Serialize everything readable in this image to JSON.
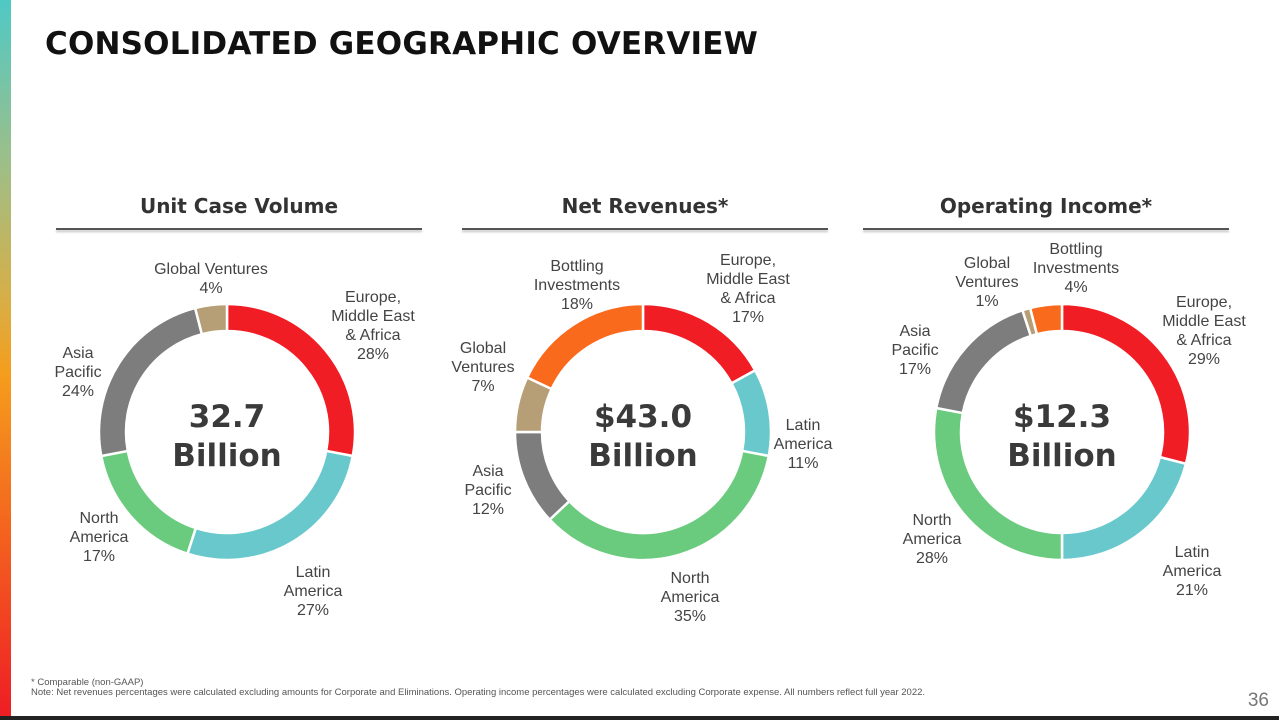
{
  "page": {
    "title": "CONSOLIDATED GEOGRAPHIC OVERVIEW",
    "footnote_line1": "* Comparable (non-GAAP)",
    "footnote_line2": "Note: Net revenues percentages were calculated excluding amounts for Corporate and Eliminations. Operating income percentages were calculated excluding Corporate expense. All numbers reflect full year 2022.",
    "page_number": "36"
  },
  "colors": {
    "emea": "#f01d25",
    "latin_america": "#69c8cc",
    "north_america": "#6acb7e",
    "asia_pacific": "#7d7d7d",
    "global_ventures": "#b69e77",
    "bottling_investments": "#f96a1c"
  },
  "chart_data": [
    {
      "type": "pie",
      "title": "Unit Case Volume",
      "center_value": "32.7",
      "center_unit": "Billion",
      "slices": [
        {
          "key": "emea",
          "label": [
            "Europe,",
            "Middle East",
            "& Africa"
          ],
          "pct_label": "28%",
          "value": 28,
          "color": "#f01d25"
        },
        {
          "key": "latin_america",
          "label": [
            "Latin",
            "America"
          ],
          "pct_label": "27%",
          "value": 27,
          "color": "#69c8cc"
        },
        {
          "key": "north_america",
          "label": [
            "North",
            "America"
          ],
          "pct_label": "17%",
          "value": 17,
          "color": "#6acb7e"
        },
        {
          "key": "asia_pacific",
          "label": [
            "Asia",
            "Pacific"
          ],
          "pct_label": "24%",
          "value": 24,
          "color": "#7d7d7d"
        },
        {
          "key": "global_ventures",
          "label": [
            "Global Ventures"
          ],
          "pct_label": "4%",
          "value": 4,
          "color": "#b69e77"
        }
      ]
    },
    {
      "type": "pie",
      "title": "Net Revenues*",
      "center_value": "$43.0",
      "center_unit": "Billion",
      "slices": [
        {
          "key": "emea",
          "label": [
            "Europe,",
            "Middle East",
            "& Africa"
          ],
          "pct_label": "17%",
          "value": 17,
          "color": "#f01d25"
        },
        {
          "key": "latin_america",
          "label": [
            "Latin",
            "America"
          ],
          "pct_label": "11%",
          "value": 11,
          "color": "#69c8cc"
        },
        {
          "key": "north_america",
          "label": [
            "North",
            "America"
          ],
          "pct_label": "35%",
          "value": 35,
          "color": "#6acb7e"
        },
        {
          "key": "asia_pacific",
          "label": [
            "Asia",
            "Pacific"
          ],
          "pct_label": "12%",
          "value": 12,
          "color": "#7d7d7d"
        },
        {
          "key": "global_ventures",
          "label": [
            "Global",
            "Ventures"
          ],
          "pct_label": "7%",
          "value": 7,
          "color": "#b69e77"
        },
        {
          "key": "bottling_investments",
          "label": [
            "Bottling",
            "Investments"
          ],
          "pct_label": "18%",
          "value": 18,
          "color": "#f96a1c"
        }
      ]
    },
    {
      "type": "pie",
      "title": "Operating Income*",
      "center_value": "$12.3",
      "center_unit": "Billion",
      "slices": [
        {
          "key": "emea",
          "label": [
            "Europe,",
            "Middle East",
            "& Africa"
          ],
          "pct_label": "29%",
          "value": 29,
          "color": "#f01d25"
        },
        {
          "key": "latin_america",
          "label": [
            "Latin",
            "America"
          ],
          "pct_label": "21%",
          "value": 21,
          "color": "#69c8cc"
        },
        {
          "key": "north_america",
          "label": [
            "North",
            "America"
          ],
          "pct_label": "28%",
          "value": 28,
          "color": "#6acb7e"
        },
        {
          "key": "asia_pacific",
          "label": [
            "Asia",
            "Pacific"
          ],
          "pct_label": "17%",
          "value": 17,
          "color": "#7d7d7d"
        },
        {
          "key": "global_ventures",
          "label": [
            "Global",
            "Ventures"
          ],
          "pct_label": "1%",
          "value": 1,
          "color": "#b69e77"
        },
        {
          "key": "bottling_investments",
          "label": [
            "Bottling",
            "Investments"
          ],
          "pct_label": "4%",
          "value": 4,
          "color": "#f96a1c"
        }
      ]
    }
  ]
}
